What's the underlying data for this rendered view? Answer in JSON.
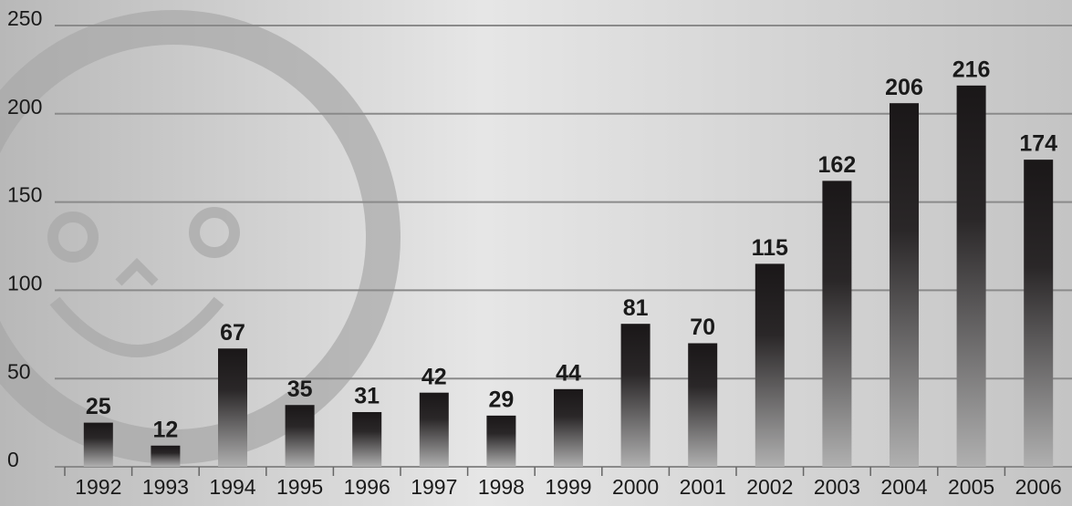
{
  "chart_data": {
    "type": "bar",
    "categories": [
      "1992",
      "1993",
      "1994",
      "1995",
      "1996",
      "1997",
      "1998",
      "1999",
      "2000",
      "2001",
      "2002",
      "2003",
      "2004",
      "2005",
      "2006"
    ],
    "values": [
      25,
      12,
      67,
      35,
      31,
      42,
      29,
      44,
      81,
      70,
      115,
      162,
      206,
      216,
      174
    ],
    "ylim": [
      0,
      250
    ],
    "yticks": [
      0,
      50,
      100,
      150,
      200,
      250
    ],
    "grid": true,
    "color": "#1a1718"
  }
}
